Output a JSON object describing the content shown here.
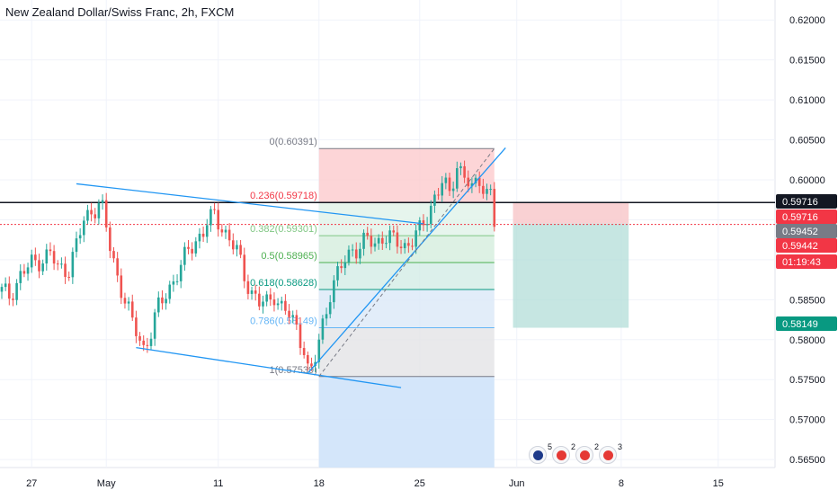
{
  "header": {
    "title": "New Zealand Dollar/Swiss Franc, 2h, FXCM"
  },
  "chart_data": {
    "type": "candlestick",
    "symbol": "NZDCHF",
    "interval": "2h",
    "y_axis": {
      "ticks": [
        "0.62000",
        "0.61500",
        "0.61000",
        "0.60500",
        "0.60000",
        "0.59500",
        "0.59000",
        "0.58500",
        "0.58000",
        "0.57500",
        "0.57000",
        "0.56500"
      ],
      "range": [
        0.564,
        0.6225
      ]
    },
    "x_axis": {
      "ticks": [
        "27",
        "May",
        "11",
        "18",
        "25",
        "Jun",
        "8",
        "15"
      ]
    },
    "price_path_close": [
      [
        0,
        0.586
      ],
      [
        2,
        0.5855
      ],
      [
        5,
        0.588
      ],
      [
        8,
        0.5895
      ],
      [
        11,
        0.5902
      ],
      [
        13,
        0.5908
      ],
      [
        15,
        0.5888
      ],
      [
        18,
        0.589
      ],
      [
        20,
        0.5918
      ],
      [
        22,
        0.5948
      ],
      [
        24,
        0.5962
      ],
      [
        26,
        0.597
      ],
      [
        27,
        0.5962
      ],
      [
        29,
        0.5915
      ],
      [
        31,
        0.588
      ],
      [
        33,
        0.585
      ],
      [
        35,
        0.582
      ],
      [
        37,
        0.58
      ],
      [
        38,
        0.579
      ],
      [
        40,
        0.581
      ],
      [
        42,
        0.584
      ],
      [
        44,
        0.5858
      ],
      [
        46,
        0.5875
      ],
      [
        48,
        0.589
      ],
      [
        50,
        0.5912
      ],
      [
        52,
        0.5925
      ],
      [
        54,
        0.5935
      ],
      [
        55,
        0.5945
      ],
      [
        57,
        0.5955
      ],
      [
        59,
        0.5942
      ],
      [
        61,
        0.5925
      ],
      [
        63,
        0.591
      ],
      [
        65,
        0.588
      ],
      [
        67,
        0.586
      ],
      [
        69,
        0.5845
      ],
      [
        71,
        0.5845
      ],
      [
        73,
        0.5858
      ],
      [
        75,
        0.584
      ],
      [
        77,
        0.583
      ],
      [
        79,
        0.5815
      ],
      [
        81,
        0.579
      ],
      [
        82,
        0.5762
      ],
      [
        83,
        0.576
      ],
      [
        84,
        0.5775
      ],
      [
        86,
        0.582
      ],
      [
        88,
        0.586
      ],
      [
        90,
        0.588
      ],
      [
        92,
        0.59
      ],
      [
        94,
        0.5915
      ],
      [
        96,
        0.5915
      ],
      [
        98,
        0.5925
      ],
      [
        100,
        0.592
      ],
      [
        102,
        0.593
      ],
      [
        104,
        0.5925
      ],
      [
        106,
        0.5922
      ],
      [
        108,
        0.5918
      ],
      [
        110,
        0.5925
      ],
      [
        112,
        0.5935
      ],
      [
        114,
        0.5955
      ],
      [
        116,
        0.598
      ],
      [
        118,
        0.5995
      ],
      [
        120,
        0.5982
      ],
      [
        122,
        0.602
      ],
      [
        124,
        0.6005
      ],
      [
        126,
        0.5985
      ],
      [
        128,
        0.6002
      ],
      [
        130,
        0.5985
      ],
      [
        131,
        0.5985
      ],
      [
        132,
        0.5945
      ]
    ],
    "drawings": {
      "fibonacci_retracement": {
        "levels": [
          {
            "ratio": "0",
            "price": "0.60391",
            "label": "0(0.60391)",
            "color": "#787b86"
          },
          {
            "ratio": "0.236",
            "price": "0.59718",
            "label": "0.236(0.59718)",
            "color": "#f23645"
          },
          {
            "ratio": "0.382",
            "price": "0.59301",
            "label": "0.382(0.59301)",
            "color": "#81c784"
          },
          {
            "ratio": "0.5",
            "price": "0.58965",
            "label": "0.5(0.58965)",
            "color": "#4caf50"
          },
          {
            "ratio": "0.618",
            "price": "0.58628",
            "label": "0.618(0.58628)",
            "color": "#089981"
          },
          {
            "ratio": "0.786",
            "price": "0.58149",
            "label": "0.786(0.58149)",
            "color": "#64b5f6"
          },
          {
            "ratio": "1",
            "price": "0.57539",
            "label": "1(0.57539)",
            "color": "#787b86"
          }
        ]
      },
      "trendlines": [
        {
          "from": [
            20,
            0.5995
          ],
          "to": [
            113,
            0.5945
          ]
        },
        {
          "from": [
            36,
            0.579
          ],
          "to": [
            107,
            0.574
          ]
        },
        {
          "from": [
            82,
            0.5758
          ],
          "to": [
            135,
            0.604
          ]
        }
      ],
      "short_position": {
        "entry": "0.59452",
        "stop": "0.59716",
        "target": "0.58149"
      },
      "horizontal_line": "0.59716"
    },
    "price_tags": [
      {
        "text": "0.59716",
        "bg": "#131722",
        "fg": "#ffffff"
      },
      {
        "text": "0.59716",
        "bg": "#f23645",
        "fg": "#ffffff"
      },
      {
        "text": "0.59452",
        "bg": "#787b86",
        "fg": "#ffffff"
      },
      {
        "text": "0.59442",
        "bg": "#f23645",
        "fg": "#ffffff"
      },
      {
        "text": "01:19:43",
        "bg": "#f23645",
        "fg": "#ffffff"
      },
      {
        "text": "0.58149",
        "bg": "#089981",
        "fg": "#ffffff"
      }
    ],
    "colors": {
      "up": "#26a69a",
      "down": "#ef5350",
      "trend": "#2196f3",
      "grid": "#f0f3fa"
    }
  },
  "economic_events": [
    {
      "flag": "nz-flag-icon",
      "count": "5"
    },
    {
      "flag": "ch-flag-icon",
      "count": "2"
    },
    {
      "flag": "ch-flag-icon",
      "count": "2"
    },
    {
      "flag": "ch-flag-icon",
      "count": "3"
    }
  ]
}
